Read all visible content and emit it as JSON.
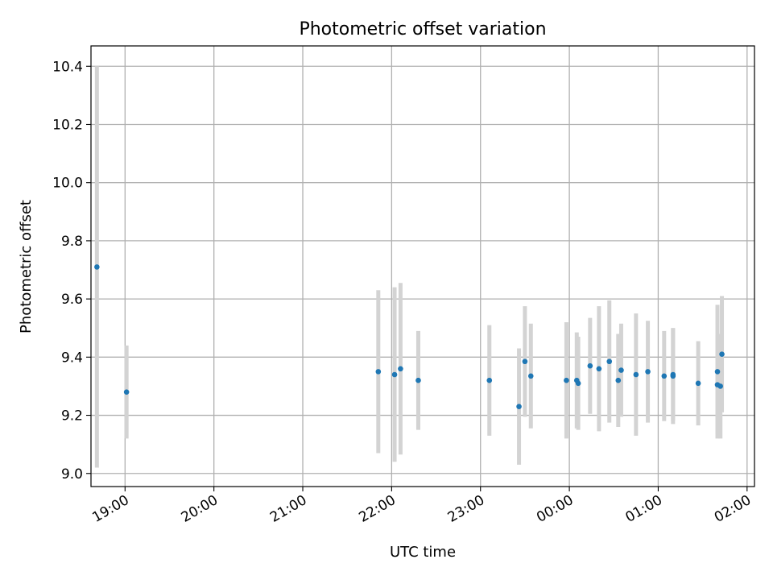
{
  "chart_data": {
    "type": "scatter",
    "title": "Photometric offset variation",
    "xlabel": "UTC time",
    "ylabel": "Photometric offset",
    "x_type": "time",
    "xlim": [
      "18:37",
      "02:05"
    ],
    "ylim": [
      8.955,
      10.47
    ],
    "grid": true,
    "x_ticks": [
      "19:00",
      "20:00",
      "21:00",
      "22:00",
      "23:00",
      "00:00",
      "01:00",
      "02:00"
    ],
    "y_ticks": [
      "9.0",
      "9.2",
      "9.4",
      "9.6",
      "9.8",
      "10.0",
      "10.2",
      "10.4"
    ],
    "colors": {
      "points": "#1f77b4",
      "errorbars": "#d3d3d3",
      "grid": "#b0b0b0"
    },
    "points": [
      {
        "x": "18:41",
        "y": 9.71,
        "err": 0.69
      },
      {
        "x": "19:01",
        "y": 9.28,
        "err": 0.16
      },
      {
        "x": "21:51",
        "y": 9.35,
        "err": 0.28
      },
      {
        "x": "22:02",
        "y": 9.34,
        "err": 0.3
      },
      {
        "x": "22:06",
        "y": 9.36,
        "err": 0.295
      },
      {
        "x": "22:18",
        "y": 9.32,
        "err": 0.17
      },
      {
        "x": "23:06",
        "y": 9.32,
        "err": 0.19
      },
      {
        "x": "23:26",
        "y": 9.23,
        "err": 0.2
      },
      {
        "x": "23:30",
        "y": 9.385,
        "err": 0.19
      },
      {
        "x": "23:34",
        "y": 9.335,
        "err": 0.18
      },
      {
        "x": "23:58",
        "y": 9.32,
        "err": 0.2
      },
      {
        "x": "00:05",
        "y": 9.32,
        "err": 0.165
      },
      {
        "x": "00:06",
        "y": 9.31,
        "err": 0.16
      },
      {
        "x": "00:14",
        "y": 9.37,
        "err": 0.165
      },
      {
        "x": "00:20",
        "y": 9.36,
        "err": 0.215
      },
      {
        "x": "00:27",
        "y": 9.385,
        "err": 0.21
      },
      {
        "x": "00:33",
        "y": 9.32,
        "err": 0.16
      },
      {
        "x": "00:35",
        "y": 9.355,
        "err": 0.16
      },
      {
        "x": "00:45",
        "y": 9.34,
        "err": 0.21
      },
      {
        "x": "00:53",
        "y": 9.35,
        "err": 0.175
      },
      {
        "x": "01:04",
        "y": 9.335,
        "err": 0.155
      },
      {
        "x": "01:10",
        "y": 9.34,
        "err": 0.16
      },
      {
        "x": "01:10",
        "y": 9.335,
        "err": 0.165
      },
      {
        "x": "01:27",
        "y": 9.31,
        "err": 0.145
      },
      {
        "x": "01:40",
        "y": 9.305,
        "err": 0.17
      },
      {
        "x": "01:40",
        "y": 9.35,
        "err": 0.23
      },
      {
        "x": "01:42",
        "y": 9.3,
        "err": 0.18
      },
      {
        "x": "01:43",
        "y": 9.41,
        "err": 0.2
      }
    ]
  }
}
